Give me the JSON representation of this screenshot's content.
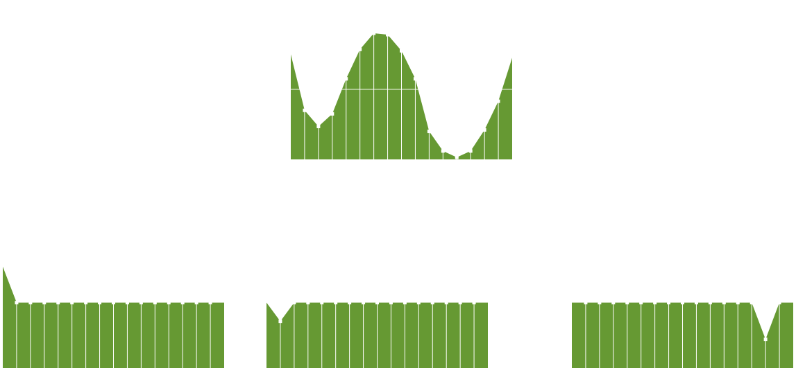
{
  "colors": {
    "area_fill": "#669933",
    "gridline": "#ffffff",
    "marker": "#ffffff",
    "background": "#ffffff"
  },
  "chart_data": [
    {
      "type": "area",
      "grid": true,
      "legend": "none",
      "ylim": [
        0,
        180
      ],
      "x": [
        0,
        1,
        2,
        3,
        4,
        5,
        6,
        7,
        8,
        9,
        10,
        11,
        12,
        13,
        14,
        15,
        16
      ],
      "values": [
        150,
        70,
        47,
        65,
        115,
        157,
        180,
        178,
        155,
        115,
        40,
        12,
        3,
        12,
        42,
        83,
        145
      ]
    },
    {
      "type": "area",
      "grid": true,
      "legend": "none",
      "ylim": [
        0,
        160
      ],
      "x": [
        0,
        1,
        2,
        3,
        4,
        5,
        6,
        7,
        8,
        9,
        10,
        11,
        12,
        13,
        14,
        15,
        16
      ],
      "values": [
        152,
        98,
        98,
        98,
        98,
        98,
        98,
        98,
        98,
        98,
        98,
        98,
        98,
        98,
        98,
        98,
        98
      ]
    },
    {
      "type": "area",
      "grid": true,
      "legend": "none",
      "ylim": [
        0,
        160
      ],
      "x": [
        0,
        1,
        2,
        3,
        4,
        5,
        6,
        7,
        8,
        9,
        10,
        11,
        12,
        13,
        14,
        15,
        16
      ],
      "values": [
        98,
        70,
        98,
        98,
        98,
        98,
        98,
        98,
        98,
        98,
        98,
        98,
        98,
        98,
        98,
        98,
        98
      ]
    },
    {
      "type": "area",
      "grid": true,
      "legend": "none",
      "ylim": [
        0,
        160
      ],
      "x": [
        0,
        1,
        2,
        3,
        4,
        5,
        6,
        7,
        8,
        9,
        10,
        11,
        12,
        13,
        14,
        15,
        16
      ],
      "values": [
        98,
        98,
        98,
        98,
        98,
        98,
        98,
        98,
        98,
        98,
        98,
        98,
        98,
        98,
        43,
        98,
        98
      ]
    }
  ]
}
